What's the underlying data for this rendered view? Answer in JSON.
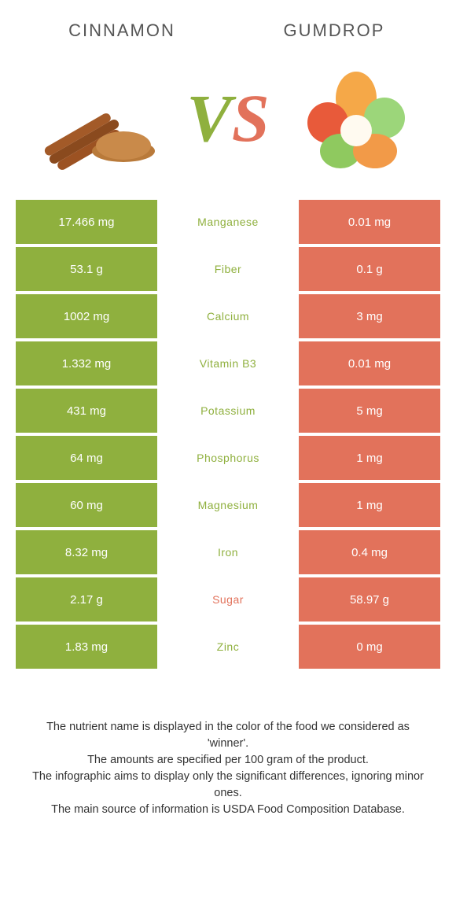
{
  "left_name": "CINNAMON",
  "right_name": "GUMDROP",
  "vs_v": "V",
  "vs_s": "S",
  "colors": {
    "left": "#8fb03e",
    "right": "#e2725b"
  },
  "rows": [
    {
      "nutrient": "Manganese",
      "left": "17.466 mg",
      "right": "0.01 mg",
      "winner": "left"
    },
    {
      "nutrient": "Fiber",
      "left": "53.1 g",
      "right": "0.1 g",
      "winner": "left"
    },
    {
      "nutrient": "Calcium",
      "left": "1002 mg",
      "right": "3 mg",
      "winner": "left"
    },
    {
      "nutrient": "Vitamin B3",
      "left": "1.332 mg",
      "right": "0.01 mg",
      "winner": "left"
    },
    {
      "nutrient": "Potassium",
      "left": "431 mg",
      "right": "5 mg",
      "winner": "left"
    },
    {
      "nutrient": "Phosphorus",
      "left": "64 mg",
      "right": "1 mg",
      "winner": "left"
    },
    {
      "nutrient": "Magnesium",
      "left": "60 mg",
      "right": "1 mg",
      "winner": "left"
    },
    {
      "nutrient": "Iron",
      "left": "8.32 mg",
      "right": "0.4 mg",
      "winner": "left"
    },
    {
      "nutrient": "Sugar",
      "left": "2.17 g",
      "right": "58.97 g",
      "winner": "right"
    },
    {
      "nutrient": "Zinc",
      "left": "1.83 mg",
      "right": "0 mg",
      "winner": "left"
    }
  ],
  "footnotes": [
    "The nutrient name is displayed in the color of the food we considered as 'winner'.",
    "The amounts are specified per 100 gram of the product.",
    "The infographic aims to display only the significant differences, ignoring minor ones.",
    "The main source of information is USDA Food Composition Database."
  ]
}
